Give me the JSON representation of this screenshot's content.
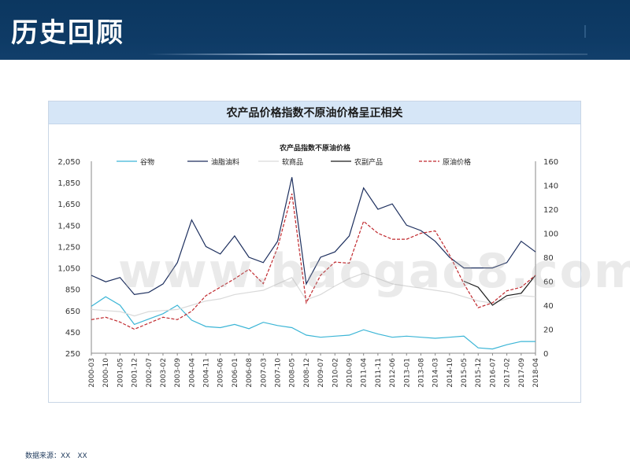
{
  "header": {
    "title": "历史回顾"
  },
  "panel": {
    "title": "农产品价格指数不原油价格呈正相关"
  },
  "footer": {
    "source": "数据来源：XX　XX"
  },
  "watermark": "www.baogao8.com",
  "colors": {
    "cereals": "#3bb5d6",
    "oils": "#1d2f5e",
    "softs": "#d9d9d9",
    "agri": "#1a1a1a",
    "crude": "#c0282d"
  },
  "chart_data": {
    "type": "line",
    "title": "农产品指数不原油价格",
    "left_axis": {
      "min": 250,
      "max": 2050,
      "ticks": [
        "2,050",
        "1,850",
        "1,650",
        "1,450",
        "1,250",
        "1,050",
        "850",
        "650",
        "450",
        "250"
      ]
    },
    "right_axis": {
      "min": 0,
      "max": 160,
      "ticks": [
        "160",
        "140",
        "120",
        "100",
        "80",
        "60",
        "40",
        "20",
        "0"
      ]
    },
    "x_labels": [
      "2000-03",
      "2000-10",
      "2001-05",
      "2001-12",
      "2002-07",
      "2003-02",
      "2003-09",
      "2004-04",
      "2004-11",
      "2005-06",
      "2006-01",
      "2006-08",
      "2007-03",
      "2007-10",
      "2008-05",
      "2008-12",
      "2009-07",
      "2010-02",
      "2010-09",
      "2011-04",
      "2011-11",
      "2012-06",
      "2013-01",
      "2013-08",
      "2014-03",
      "2014-10",
      "2015-05",
      "2015-12",
      "2016-07",
      "2017-02",
      "2017-09",
      "2018-04"
    ],
    "legend": [
      "谷物",
      "油脂油料",
      "软商品",
      "农副产品",
      "原油价格"
    ],
    "series": [
      {
        "name": "谷物",
        "axis": "left",
        "style": "solid",
        "color": "#3bb5d6",
        "values": [
          690,
          780,
          700,
          520,
          570,
          620,
          700,
          560,
          500,
          490,
          520,
          480,
          540,
          510,
          490,
          420,
          400,
          410,
          420,
          470,
          430,
          400,
          410,
          400,
          390,
          400,
          410,
          300,
          290,
          330,
          360,
          360
        ]
      },
      {
        "name": "油脂油料",
        "axis": "left",
        "style": "solid",
        "color": "#1d2f5e",
        "values": [
          980,
          920,
          960,
          800,
          820,
          900,
          1100,
          1500,
          1250,
          1180,
          1350,
          1150,
          1100,
          1300,
          1900,
          900,
          1150,
          1200,
          1350,
          1800,
          1600,
          1650,
          1450,
          1400,
          1300,
          1150,
          1050,
          1050,
          1050,
          1100,
          1300,
          1200
        ]
      },
      {
        "name": "软商品",
        "axis": "left",
        "style": "solid",
        "color": "#d9d9d9",
        "values": [
          660,
          650,
          640,
          600,
          640,
          650,
          660,
          700,
          740,
          760,
          800,
          820,
          840,
          900,
          960,
          750,
          800,
          880,
          950,
          1000,
          950,
          900,
          880,
          860,
          840,
          820,
          780,
          740,
          720,
          760,
          790,
          780
        ]
      },
      {
        "name": "农副产品",
        "axis": "right",
        "style": "solid",
        "color": "#1a1a1a",
        "values": [
          null,
          null,
          null,
          null,
          null,
          null,
          null,
          null,
          null,
          null,
          null,
          null,
          null,
          null,
          null,
          null,
          null,
          null,
          null,
          null,
          null,
          null,
          null,
          null,
          null,
          null,
          60,
          55,
          40,
          48,
          50,
          65
        ]
      },
      {
        "name": "原油价格",
        "axis": "right",
        "style": "dashed",
        "color": "#c0282d",
        "values": [
          28,
          30,
          26,
          20,
          25,
          30,
          28,
          35,
          48,
          55,
          62,
          70,
          58,
          88,
          133,
          42,
          65,
          76,
          75,
          110,
          100,
          95,
          95,
          100,
          102,
          82,
          58,
          38,
          42,
          52,
          55,
          65
        ]
      }
    ]
  }
}
